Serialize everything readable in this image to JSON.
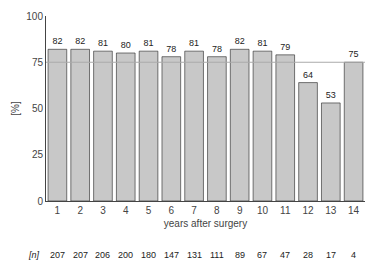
{
  "chart_data": {
    "type": "bar",
    "categories": [
      "1",
      "2",
      "3",
      "4",
      "5",
      "6",
      "7",
      "8",
      "9",
      "10",
      "11",
      "12",
      "13",
      "14"
    ],
    "values": [
      82,
      82,
      81,
      80,
      81,
      78,
      81,
      78,
      82,
      81,
      79,
      64,
      53,
      75
    ],
    "n_label": "[n]",
    "n_values": [
      207,
      207,
      206,
      200,
      180,
      147,
      131,
      111,
      89,
      67,
      47,
      28,
      17,
      4
    ],
    "color": "#c8c8c8",
    "xlabel": "years after surgery",
    "ylabel": "[%]",
    "ylim": [
      0,
      100
    ],
    "yticks": [
      0,
      25,
      50,
      75,
      100
    ],
    "reference_line": 75,
    "data_labels": true,
    "grid": false
  }
}
